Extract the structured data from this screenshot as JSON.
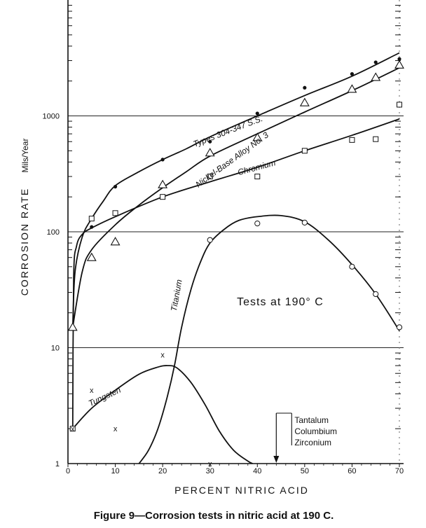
{
  "chart_data": {
    "type": "line",
    "xlabel": "PERCENT NITRIC ACID",
    "ylabel": "CORROSION RATE",
    "ylabel_units": "Mils/Year",
    "yscale": "log",
    "xlim": [
      0,
      70
    ],
    "ylim": [
      1,
      10000
    ],
    "x_ticks": [
      0,
      10,
      20,
      30,
      40,
      50,
      60,
      70
    ],
    "y_ticks": [
      1,
      10,
      100,
      1000
    ],
    "y_tick_labels": [
      "1",
      "10",
      "100",
      "1000"
    ],
    "annotation": "Tests at 190° C",
    "arrow_labels": [
      "Tantalum",
      "Columbium",
      "Zirconium"
    ],
    "arrow_x": 44,
    "series": [
      {
        "name": "Types 304-347 S.S.",
        "marker": "dot",
        "points": [
          [
            1,
            15
          ],
          [
            5,
            110
          ],
          [
            10,
            245
          ],
          [
            20,
            420
          ],
          [
            30,
            600
          ],
          [
            40,
            1050
          ],
          [
            50,
            1750
          ],
          [
            60,
            2300
          ],
          [
            65,
            2900
          ],
          [
            70,
            3100
          ]
        ],
        "curve": [
          [
            1,
            15
          ],
          [
            1.5,
            45
          ],
          [
            3,
            90
          ],
          [
            5,
            130
          ],
          [
            7.5,
            185
          ],
          [
            10,
            250
          ],
          [
            15,
            330
          ],
          [
            20,
            420
          ],
          [
            25,
            520
          ],
          [
            30,
            660
          ],
          [
            40,
            1000
          ],
          [
            50,
            1500
          ],
          [
            60,
            2200
          ],
          [
            70,
            3500
          ]
        ]
      },
      {
        "name": "Nickel-Base Alloy No. 3",
        "marker": "triangle",
        "points": [
          [
            1,
            15
          ],
          [
            5,
            60
          ],
          [
            10,
            82
          ],
          [
            20,
            255
          ],
          [
            30,
            480
          ],
          [
            40,
            650
          ],
          [
            50,
            1300
          ],
          [
            60,
            1700
          ],
          [
            65,
            2150
          ],
          [
            70,
            2750
          ]
        ],
        "curve": [
          [
            1,
            15
          ],
          [
            3,
            45
          ],
          [
            5,
            70
          ],
          [
            10,
            115
          ],
          [
            15,
            170
          ],
          [
            20,
            240
          ],
          [
            25,
            330
          ],
          [
            30,
            450
          ],
          [
            40,
            700
          ],
          [
            50,
            1080
          ],
          [
            60,
            1650
          ],
          [
            70,
            2600
          ]
        ]
      },
      {
        "name": "Chromium",
        "marker": "square",
        "points": [
          [
            1,
            2
          ],
          [
            5,
            130
          ],
          [
            10,
            145
          ],
          [
            20,
            200
          ],
          [
            30,
            300
          ],
          [
            40,
            300
          ],
          [
            50,
            500
          ],
          [
            60,
            620
          ],
          [
            65,
            630
          ],
          [
            70,
            1250
          ]
        ],
        "curve": [
          [
            1,
            2
          ],
          [
            1.2,
            40
          ],
          [
            1.8,
            75
          ],
          [
            3,
            95
          ],
          [
            5,
            108
          ],
          [
            10,
            135
          ],
          [
            20,
            200
          ],
          [
            30,
            270
          ],
          [
            40,
            360
          ],
          [
            50,
            500
          ],
          [
            60,
            680
          ],
          [
            70,
            940
          ]
        ]
      },
      {
        "name": "Titanium",
        "marker": "circle",
        "points": [
          [
            30,
            85
          ],
          [
            40,
            118
          ],
          [
            50,
            120
          ],
          [
            60,
            50
          ],
          [
            65,
            29
          ],
          [
            70,
            15
          ]
        ],
        "curve": [
          [
            15,
            1
          ],
          [
            17,
            1.3
          ],
          [
            19,
            2
          ],
          [
            21,
            3.8
          ],
          [
            22.5,
            7
          ],
          [
            24,
            15
          ],
          [
            26,
            32
          ],
          [
            28,
            55
          ],
          [
            30,
            80
          ],
          [
            33,
            105
          ],
          [
            36,
            125
          ],
          [
            40,
            135
          ],
          [
            45,
            138
          ],
          [
            50,
            122
          ],
          [
            55,
            85
          ],
          [
            60,
            52
          ],
          [
            65,
            29
          ],
          [
            70,
            14
          ]
        ]
      },
      {
        "name": "Tungsten",
        "marker": "x",
        "points": [
          [
            1,
            2
          ],
          [
            5,
            4.3
          ],
          [
            10,
            2
          ],
          [
            20,
            8.7
          ],
          [
            30,
            1
          ]
        ],
        "curve": [
          [
            1,
            2
          ],
          [
            5,
            3
          ],
          [
            10,
            4.3
          ],
          [
            15,
            5.9
          ],
          [
            19,
            6.8
          ],
          [
            21,
            7
          ],
          [
            23,
            6.7
          ],
          [
            26,
            5
          ],
          [
            29,
            3.2
          ],
          [
            32,
            1.9
          ],
          [
            35,
            1.3
          ],
          [
            38,
            1.05
          ],
          [
            39,
            1
          ]
        ]
      }
    ]
  },
  "caption": "Figure 9—Corrosion tests in nitric acid at 190 C."
}
